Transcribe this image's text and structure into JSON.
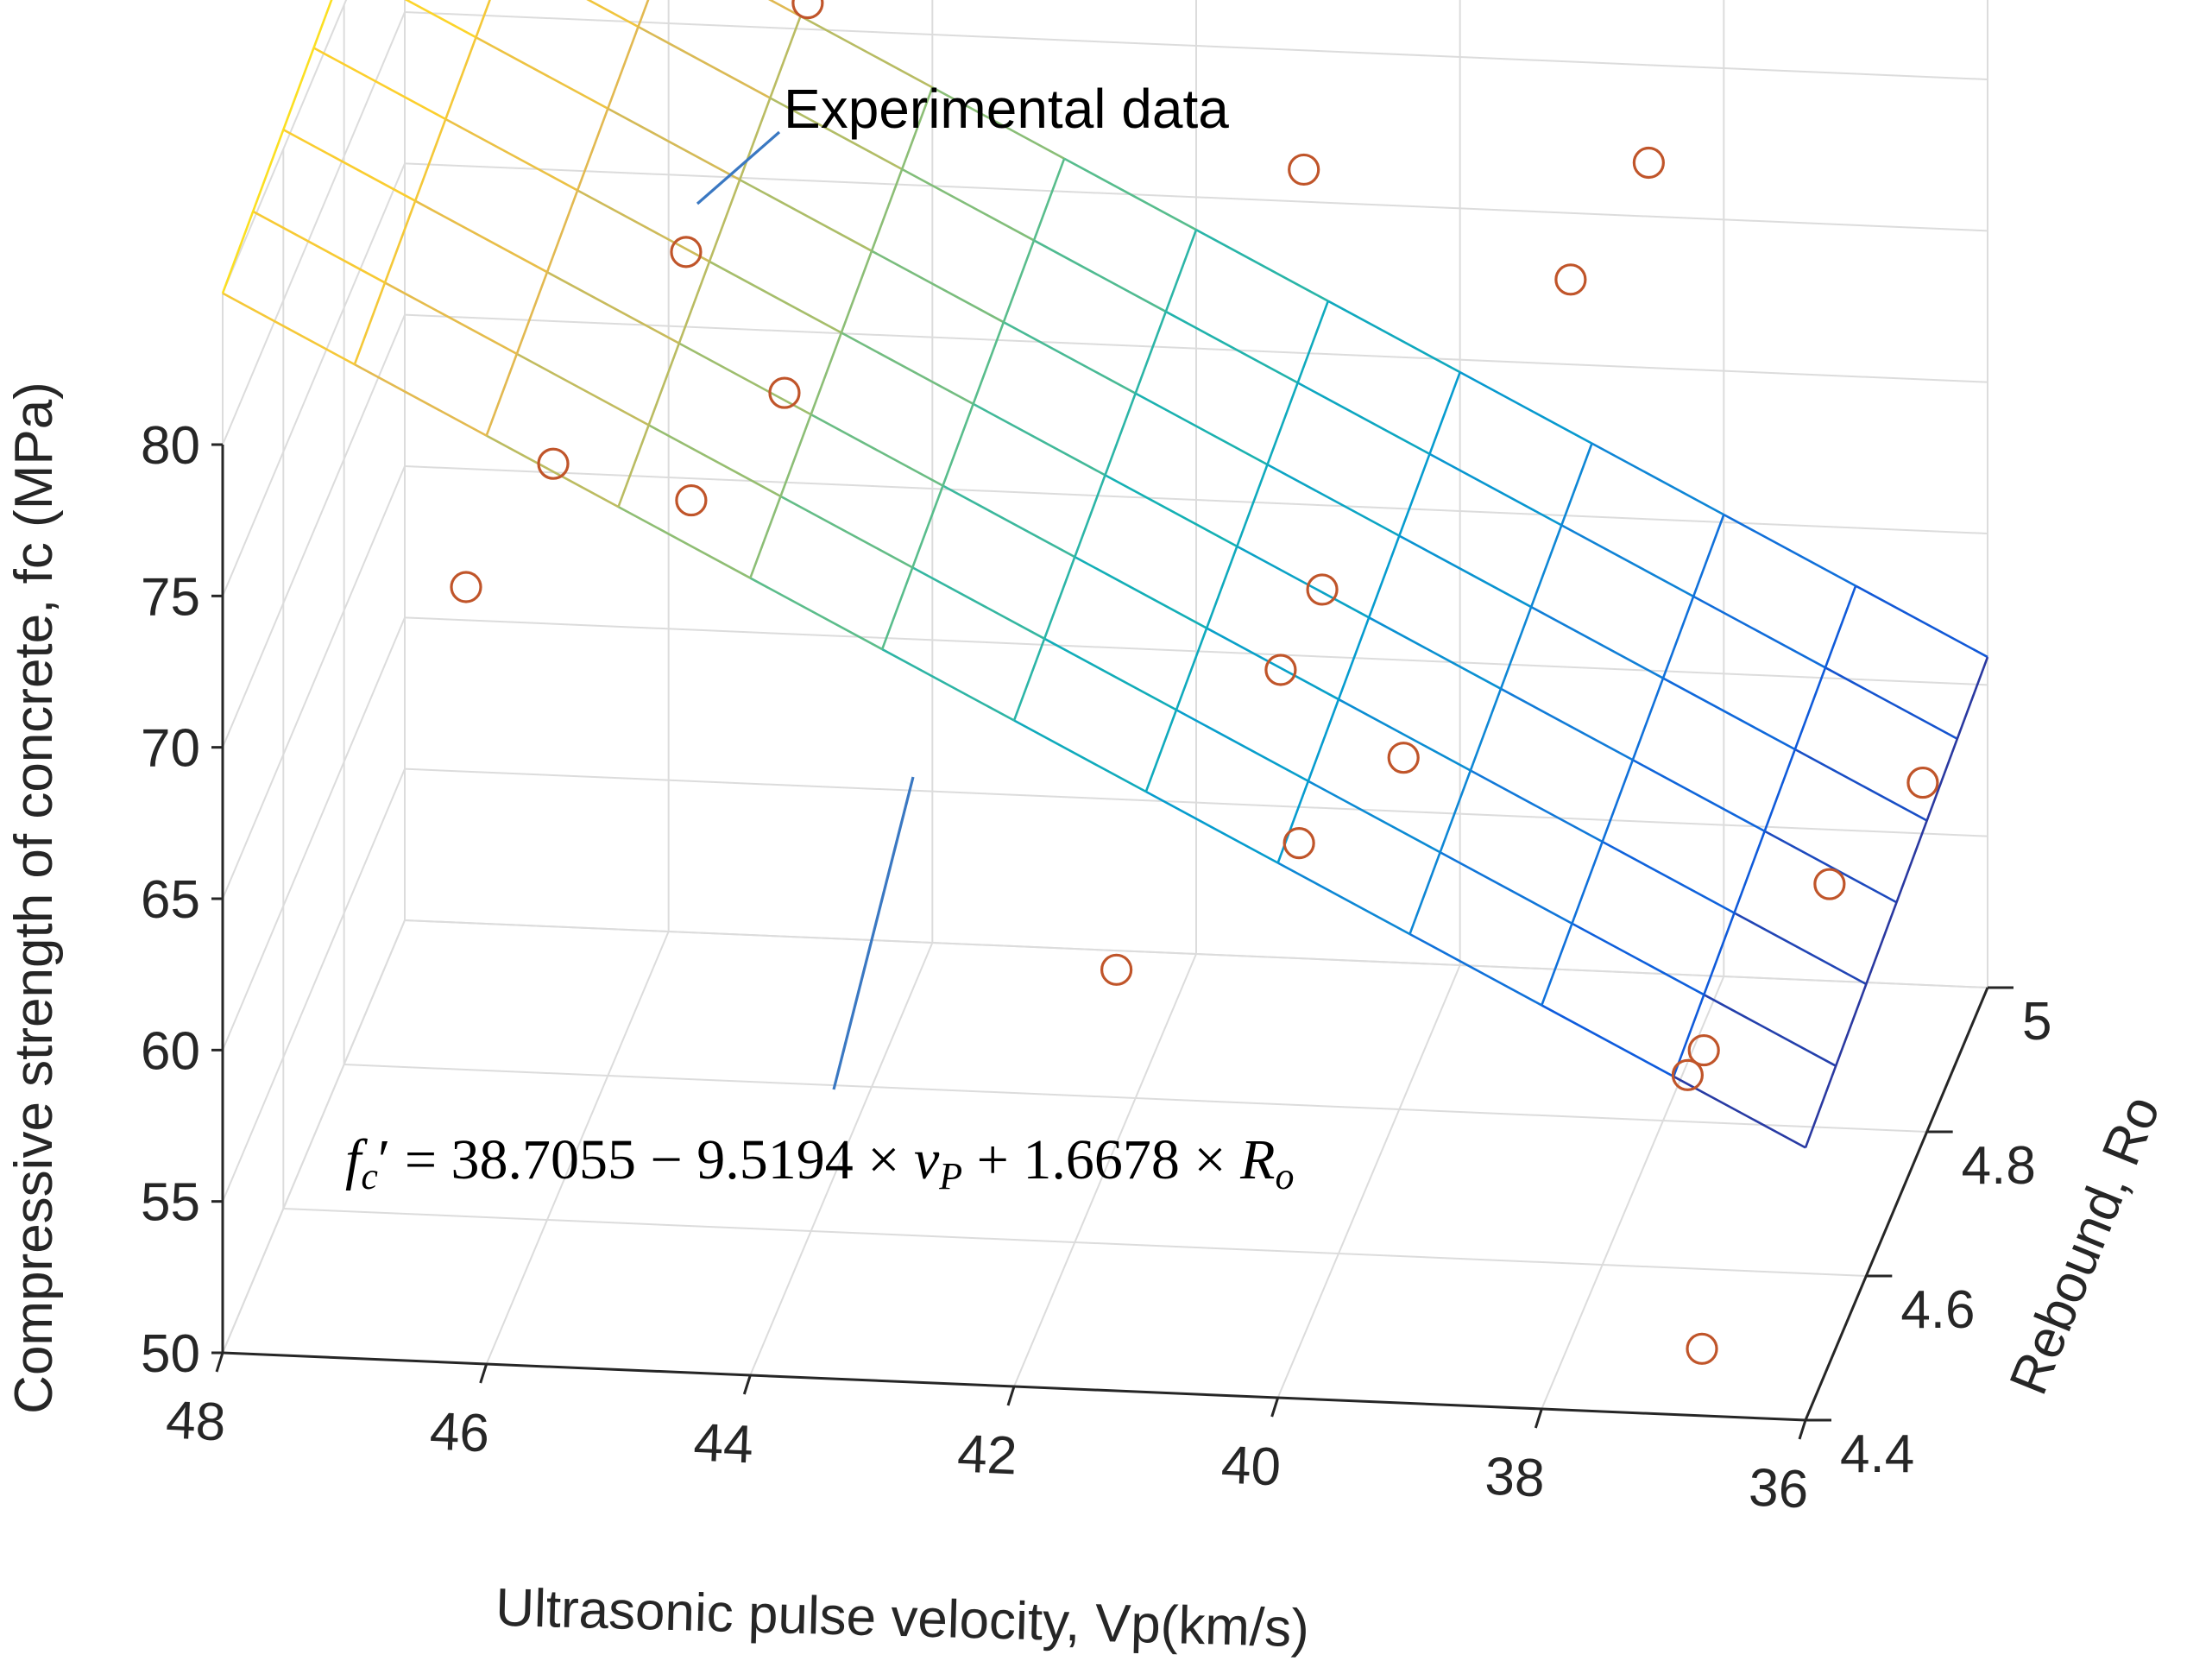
{
  "chart_data": {
    "type": "scatter3d-with-surface",
    "title": "",
    "xlabel": "Ultrasonic pulse velocity, Vp(km/s)",
    "ylabel": "Rebound, Ro",
    "zlabel": "Compressive strength of concrete, fc (MPa)",
    "xlim": [
      36,
      48
    ],
    "ylim": [
      4.4,
      5
    ],
    "zlim": [
      50,
      85
    ],
    "x_ticks": [
      "48",
      "46",
      "44",
      "42",
      "40",
      "38",
      "36"
    ],
    "y_ticks": [
      "4.4",
      "4.6",
      "4.8",
      "5"
    ],
    "z_ticks": [
      "50",
      "55",
      "60",
      "65",
      "70",
      "75",
      "80"
    ],
    "grid": true,
    "surface": {
      "name": "fitted plane",
      "colormap": "parula",
      "x_range": [
        36,
        48
      ],
      "y_range": [
        4.4,
        5
      ],
      "z_range": [
        59,
        85
      ]
    },
    "series": [
      {
        "name": "Experimental data",
        "marker": "circle",
        "color": "#c0552a",
        "points": [
          {
            "x": 44.6,
            "y": 4.85,
            "z": 84.5
          },
          {
            "x": 45.2,
            "y": 4.71,
            "z": 79.5
          },
          {
            "x": 41.0,
            "y": 4.92,
            "z": 78.0
          },
          {
            "x": 38.5,
            "y": 4.97,
            "z": 77.5
          },
          {
            "x": 39.0,
            "y": 4.93,
            "z": 74.5
          },
          {
            "x": 44.5,
            "y": 4.73,
            "z": 74.5
          },
          {
            "x": 46.0,
            "y": 4.62,
            "z": 74.5
          },
          {
            "x": 45.0,
            "y": 4.64,
            "z": 73.0
          },
          {
            "x": 46.5,
            "y": 4.55,
            "z": 72.0
          },
          {
            "x": 40.4,
            "y": 4.72,
            "z": 69.0
          },
          {
            "x": 40.6,
            "y": 4.67,
            "z": 67.5
          },
          {
            "x": 39.6,
            "y": 4.64,
            "z": 65.5
          },
          {
            "x": 40.3,
            "y": 4.6,
            "z": 63.5
          },
          {
            "x": 41.5,
            "y": 4.52,
            "z": 61.0
          },
          {
            "x": 36.1,
            "y": 4.83,
            "z": 60.8
          },
          {
            "x": 36.6,
            "y": 4.74,
            "z": 59.5
          },
          {
            "x": 37.3,
            "y": 4.63,
            "z": 56.5
          },
          {
            "x": 37.4,
            "y": 4.62,
            "z": 55.9
          },
          {
            "x": 36.9,
            "y": 4.45,
            "z": 51.0
          }
        ]
      }
    ],
    "annotations": [
      {
        "text": "Experimental data",
        "target": "data point"
      },
      {
        "text": "fc' = 38.7055 − 9.5194 × vP + 1.6678 × Ro",
        "target": "fitted surface"
      }
    ]
  },
  "annotations": {
    "experimental": "Experimental data",
    "equation": {
      "f": "f",
      "c": "c",
      "prime": "′",
      "eq": " = 38.7055 − 9.5194 × ",
      "v": "v",
      "P": "P",
      "plus": " + 1.6678 × ",
      "R": "R",
      "o": "o"
    }
  },
  "colors": {
    "marker": "#c0552a",
    "leader": "#3a78c2",
    "grid": "#dcdcdc",
    "axis": "#262626"
  }
}
